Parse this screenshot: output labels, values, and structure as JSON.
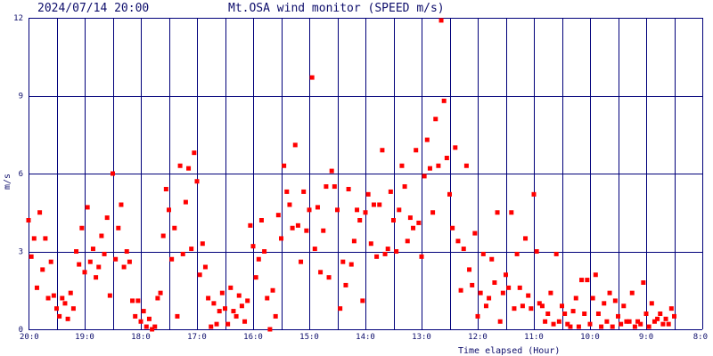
{
  "header": {
    "datetime": "2024/07/14 20:00",
    "title": "Mt.OSA wind monitor (SPEED m/s)"
  },
  "chart_data": {
    "type": "scatter",
    "title": "Mt.OSA wind monitor (SPEED m/s)",
    "xlabel": "Time elapsed (Hour)",
    "ylabel": "m/s",
    "ylim": [
      0,
      12
    ],
    "xlim": [
      0,
      24
    ],
    "x_direction": "reversed: left edge = most recent (20:0), right edge = 24 h earlier (8:0)",
    "grid": true,
    "y_ticks": [
      0,
      3,
      6,
      9,
      12
    ],
    "x_tick_labels": [
      "20:0",
      "19:0",
      "18:0",
      "17:0",
      "16:0",
      "15:0",
      "14:0",
      "13:0",
      "12:0",
      "11:0",
      "10:0",
      "9:0",
      "8:0"
    ],
    "x_tick_positions_hours": [
      0,
      2,
      4,
      6,
      8,
      10,
      12,
      14,
      16,
      18,
      20,
      22,
      24
    ],
    "marker_color": "#ff0000",
    "grid_color": "#00007a",
    "series": [
      {
        "x_hours_elapsed": [
          0,
          0.1,
          0.2,
          0.3,
          0.4,
          0.5,
          0.6,
          0.7,
          0.8,
          0.9,
          1.0,
          1.1,
          1.2,
          1.3,
          1.4,
          1.5,
          1.6,
          1.7,
          1.8,
          1.9,
          2.0,
          2.1,
          2.2,
          2.3,
          2.4,
          2.5,
          2.6,
          2.7,
          2.8,
          2.9,
          3.0,
          3.1,
          3.2,
          3.3,
          3.4,
          3.5,
          3.6,
          3.7,
          3.8,
          3.9,
          4.0,
          4.1,
          4.2,
          4.3,
          4.4,
          4.5,
          4.6,
          4.7,
          4.8,
          4.9,
          5.0,
          5.1,
          5.2,
          5.3,
          5.4,
          5.5,
          5.6,
          5.7,
          5.8,
          5.9,
          6.0,
          6.1,
          6.2,
          6.3,
          6.4,
          6.5,
          6.6,
          6.7,
          6.8,
          6.9,
          7.0,
          7.1,
          7.2,
          7.3,
          7.4,
          7.5,
          7.6,
          7.7,
          7.8,
          7.9,
          8.0,
          8.1,
          8.2,
          8.3,
          8.4,
          8.5,
          8.6,
          8.7,
          8.8,
          8.9,
          9.0,
          9.1,
          9.2,
          9.3,
          9.4,
          9.5,
          9.6,
          9.7,
          9.8,
          9.9,
          10.0,
          10.1,
          10.2,
          10.3,
          10.4,
          10.5,
          10.6,
          10.7,
          10.8,
          10.9,
          11.0,
          11.1,
          11.2,
          11.3,
          11.4,
          11.5,
          11.6,
          11.7,
          11.8,
          11.9,
          12.0,
          12.1,
          12.2,
          12.3,
          12.4,
          12.5,
          12.6,
          12.7,
          12.8,
          12.9,
          13.0,
          13.1,
          13.2,
          13.3,
          13.4,
          13.5,
          13.6,
          13.7,
          13.8,
          13.9,
          14.0,
          14.1,
          14.2,
          14.3,
          14.4,
          14.5,
          14.6,
          14.7,
          14.8,
          14.9,
          15.0,
          15.1,
          15.2,
          15.3,
          15.4,
          15.5,
          15.6,
          15.7,
          15.8,
          15.9,
          16.0,
          16.1,
          16.2,
          16.3,
          16.4,
          16.5,
          16.6,
          16.7,
          16.8,
          16.9,
          17.0,
          17.1,
          17.2,
          17.3,
          17.4,
          17.5,
          17.6,
          17.7,
          17.8,
          17.9,
          18.0,
          18.1,
          18.2,
          18.3,
          18.4,
          18.5,
          18.6,
          18.7,
          18.8,
          18.9,
          19.0,
          19.1,
          19.2,
          19.3,
          19.4,
          19.5,
          19.6,
          19.7,
          19.8,
          19.9,
          20.0,
          20.1,
          20.2,
          20.3,
          20.4,
          20.5,
          20.6,
          20.7,
          20.8,
          20.9,
          21.0,
          21.1,
          21.2,
          21.3,
          21.4,
          21.5,
          21.6,
          21.7,
          21.8,
          21.9,
          22.0,
          22.1,
          22.2,
          22.3,
          22.4,
          22.5,
          22.6,
          22.7,
          22.8,
          22.9,
          23.0,
          23.1,
          23.2,
          23.3,
          23.4,
          23.5,
          23.6,
          23.7,
          23.8,
          23.9,
          24.0
        ],
        "y_speed": [
          4.2,
          2.8,
          3.5,
          1.6,
          4.5,
          2.3,
          3.5,
          1.2,
          2.6,
          1.3,
          0.8,
          0.5,
          1.2,
          1.0,
          0.4,
          1.4,
          0.8,
          3.0,
          2.5,
          3.9,
          2.2,
          4.7,
          2.6,
          3.1,
          2.0,
          2.4,
          3.6,
          2.9,
          4.3,
          1.3,
          6.0,
          2.7,
          3.9,
          4.8,
          2.4,
          3.0,
          2.6,
          1.1,
          0.5,
          1.1,
          0.3,
          0.7,
          0.1,
          0.4,
          0.0,
          0.1,
          1.2,
          1.4,
          3.6,
          5.4,
          4.6,
          2.7,
          3.9,
          0.5,
          6.3,
          2.9,
          4.9,
          6.2,
          3.1,
          6.8,
          5.7,
          2.1,
          3.3,
          2.4,
          1.2,
          0.1,
          1.0,
          0.2,
          0.7,
          1.4,
          0.8,
          0.2,
          1.6,
          0.7,
          0.5,
          1.3,
          0.9,
          0.3,
          1.1,
          4.0,
          3.2,
          2.0,
          2.7,
          4.2,
          3.0,
          1.2,
          0.0,
          1.5,
          0.5,
          4.4,
          3.5,
          6.3,
          5.3,
          4.8,
          3.9,
          7.1,
          4.0,
          2.6,
          5.3,
          3.8,
          4.6,
          9.7,
          3.1,
          4.7,
          2.2,
          3.8,
          5.5,
          2.0,
          6.1,
          5.5,
          4.6,
          0.8,
          2.6,
          1.7,
          5.4,
          2.5,
          3.4,
          4.6,
          4.2,
          1.1,
          4.5,
          5.2,
          3.3,
          4.8,
          2.8,
          4.8,
          6.9,
          2.9,
          3.1,
          5.3,
          4.2,
          3.0,
          4.6,
          6.3,
          5.5,
          3.4,
          4.3,
          3.9,
          6.9,
          4.1,
          2.8,
          5.9,
          7.3,
          6.2,
          4.5,
          8.1,
          6.3,
          11.9,
          8.8,
          6.6,
          5.2,
          3.9,
          7.0,
          3.4,
          1.5,
          3.1,
          6.3,
          2.3,
          1.7,
          3.7,
          0.5,
          1.4,
          2.9,
          0.9,
          1.2,
          2.7,
          1.8,
          4.5,
          0.3,
          1.4,
          2.1,
          1.6,
          4.5,
          0.8,
          2.9,
          1.6,
          0.9,
          3.5,
          1.3,
          0.8,
          5.2,
          3.0,
          1.0,
          0.9,
          0.3,
          0.6,
          1.4,
          0.2,
          2.9,
          0.3,
          0.9,
          0.6,
          0.2,
          0.1,
          0.7,
          1.2,
          0.1,
          1.9,
          0.6,
          1.9,
          0.2,
          1.2,
          2.1,
          0.6,
          0.1,
          1.0,
          0.3,
          1.4,
          0.1,
          1.1,
          0.5,
          0.2,
          0.9,
          0.3,
          0.3,
          1.4,
          0.1,
          0.3,
          0.2,
          1.8,
          0.6,
          0.1,
          1.0,
          0.3,
          0.4,
          0.6,
          0.2,
          0.4,
          0.2,
          0.8,
          0.5
        ]
      }
    ]
  }
}
